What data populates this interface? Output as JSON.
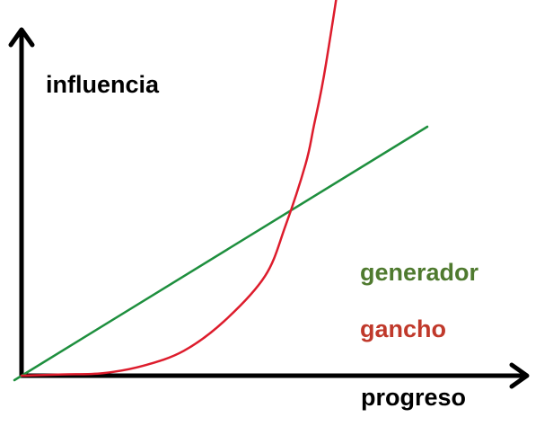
{
  "chart_data": {
    "type": "line",
    "xlabel": "progreso",
    "ylabel": "influencia",
    "grid": false,
    "legend": "right",
    "series": [
      {
        "name": "generador",
        "color": "#1e8f3e",
        "x": [
          0,
          100
        ],
        "y": [
          0,
          100
        ]
      },
      {
        "name": "gancho",
        "color": "#dd1c2c",
        "x": [
          0,
          10,
          20,
          30,
          40,
          50,
          60,
          65,
          70,
          72,
          75,
          80,
          82,
          84
        ],
        "y": [
          0,
          0.5,
          1,
          4,
          10,
          22,
          40,
          60,
          85,
          100,
          125,
          180,
          220,
          270
        ]
      }
    ]
  }
}
